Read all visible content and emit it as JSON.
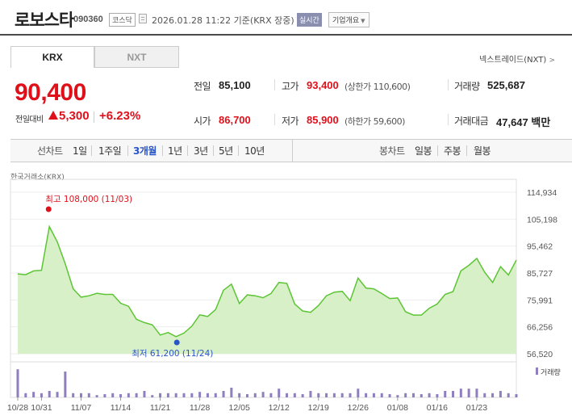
{
  "header": {
    "stock_name": "로보스타",
    "stock_code": "090360",
    "market": "코스닥",
    "timestamp": "2026.01.28 11:22 기준(KRX 장중)",
    "realtime_badge": "실시간",
    "company_info_button": "기업개요",
    "company_info_caret": "▼"
  },
  "tabs": [
    {
      "label": "KRX",
      "active": true
    },
    {
      "label": "NXT",
      "active": false
    }
  ],
  "nxt_link": "넥스트레이드(NXT)",
  "nxt_link_icon": "chevron-right-icon",
  "price": {
    "current": "90,400",
    "change_label": "전일대비",
    "change_direction": "up",
    "change_value": "5,300",
    "change_rate": "+6.23%",
    "up_color": "#e0101b"
  },
  "info": {
    "prev_close": {
      "label": "전일",
      "value": "85,100"
    },
    "open": {
      "label": "시가",
      "value": "86,700"
    },
    "high": {
      "label": "고가",
      "value": "93,400",
      "sub": "(상한가 110,600)"
    },
    "low": {
      "label": "저가",
      "value": "85,900",
      "sub": "(하한가 59,600)"
    },
    "volume": {
      "label": "거래량",
      "value": "525,687"
    },
    "amount": {
      "label": "거래대금",
      "value": "47,647 백만"
    }
  },
  "period": {
    "line_label": "선차트",
    "line_items": [
      "1일",
      "1주일",
      "3개월",
      "1년",
      "3년",
      "5년",
      "10년"
    ],
    "line_active": "3개월",
    "candle_label": "봉차트",
    "candle_items": [
      "일봉",
      "주봉",
      "월봉"
    ]
  },
  "exchange_label": "한국거래소(KRX)",
  "chart_data": {
    "type": "area",
    "x_ticks": [
      "10/28",
      "10/31",
      "11/07",
      "11/14",
      "11/21",
      "11/28",
      "12/05",
      "12/12",
      "12/19",
      "12/26",
      "01/08",
      "01/16",
      "01/23"
    ],
    "y_ticks": [
      "114,934",
      "105,198",
      "95,462",
      "85,727",
      "75,991",
      "66,256",
      "56,520"
    ],
    "ylim": [
      56520,
      114934
    ],
    "series": [
      {
        "values": [
          85400,
          85100,
          86500,
          86700,
          102500,
          97000,
          89000,
          80000,
          77000,
          77500,
          78400,
          78000,
          78000,
          74800,
          73700,
          69000,
          67800,
          67000,
          63300,
          64200,
          62700,
          64000,
          66500,
          70600,
          70000,
          72500,
          79500,
          81700,
          74700,
          77800,
          77500,
          76800,
          78300,
          82300,
          82000,
          74500,
          72000,
          71500,
          74000,
          77500,
          78800,
          79100,
          75700,
          83900,
          80300,
          80000,
          78300,
          76500,
          76700,
          71700,
          70500,
          70500,
          73000,
          74500,
          78000,
          79000,
          86500,
          88500,
          91000,
          86000,
          82300,
          88000,
          85000,
          90400
        ]
      }
    ],
    "max_label": "최고 108,000 (11/03)",
    "min_label": "최저 61,200 (11/24)",
    "volume_legend": "거래량",
    "volume_bars": [
      0.87,
      0.13,
      0.17,
      0.13,
      0.2,
      0.17,
      0.8,
      0.13,
      0.13,
      0.13,
      0.07,
      0.1,
      0.13,
      0.1,
      0.13,
      0.13,
      0.2,
      0.07,
      0.13,
      0.13,
      0.13,
      0.13,
      0.13,
      0.17,
      0.13,
      0.13,
      0.2,
      0.3,
      0.13,
      0.1,
      0.13,
      0.17,
      0.13,
      0.27,
      0.13,
      0.13,
      0.1,
      0.2,
      0.13,
      0.13,
      0.13,
      0.13,
      0.13,
      0.27,
      0.13,
      0.13,
      0.13,
      0.1,
      0.07,
      0.13,
      0.13,
      0.1,
      0.13,
      0.1,
      0.2,
      0.2,
      0.27,
      0.27,
      0.27,
      0.13,
      0.13,
      0.2,
      0.13,
      0.1
    ],
    "line_color": "#5cc534",
    "fill_color": "#d8f0c8",
    "volume_color": "#8f7fbf",
    "max_color": "#e0101b",
    "min_color": "#2a55c7"
  }
}
